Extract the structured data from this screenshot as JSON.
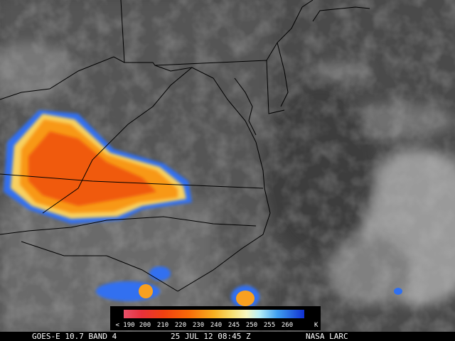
{
  "colorbar": {
    "labels": [
      "< 190",
      "200",
      "210",
      "220",
      "230",
      "240",
      "245",
      "250",
      "255",
      "260"
    ],
    "unit": "K"
  },
  "footer": {
    "satellite": "GOES-E 10.7 BAND 4",
    "time": "25 JUL 12 08:45 Z",
    "credit": "NASA LARC"
  }
}
